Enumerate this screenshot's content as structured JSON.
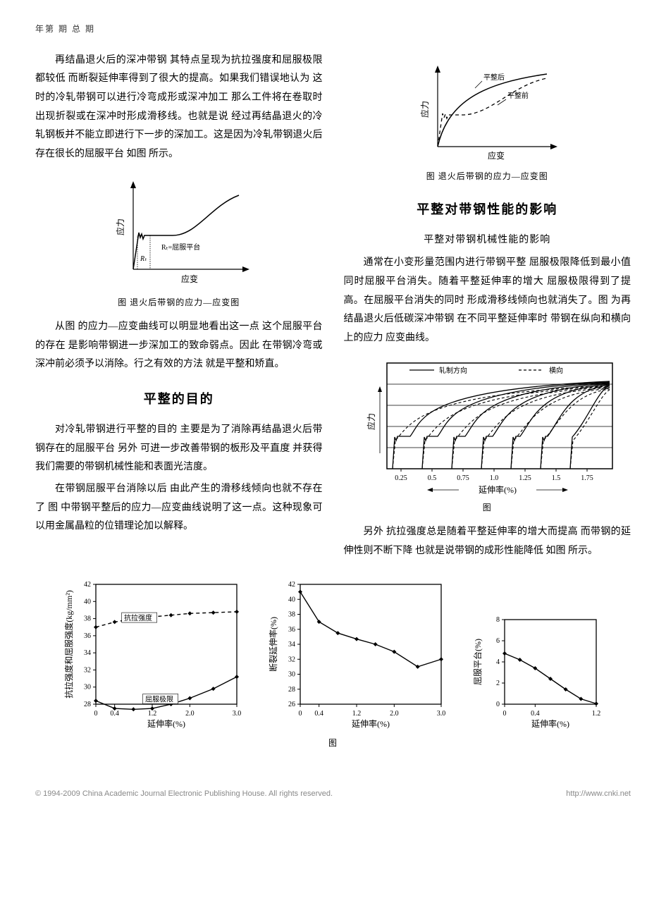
{
  "header": "年第  期  总    期",
  "left": {
    "p1": "再结晶退火后的深冲带钢  其特点呈现为抗拉强度和屈服极限都较低  而断裂延伸率得到了很大的提高。如果我们错误地认为  这时的冷轧带钢可以进行冷弯成形或深冲加工  那么工件将在卷取时出现折裂或在深冲时形成滑移线。也就是说  经过再结晶退火的冷轧钢板并不能立即进行下一步的深加工。这是因为冷轧带钢退火后存在很长的屈服平台  如图 所示。",
    "fig1_caption": "图    退火后带钢的应力—应变图",
    "fig1_ylabel": "应力",
    "fig1_xlabel": "应变",
    "fig1_rt": "Rₜ",
    "fig1_rt_label": "Rₜ=屈服平台",
    "p2": "从图 的应力—应变曲线可以明显地看出这一点  这个屈服平台的存在  是影响带钢进一步深加工的致命弱点。因此  在带钢冷弯或深冲前必须予以消除。行之有效的方法  就是平整和矫直。",
    "sec1": "平整的目的",
    "p3": "对冷轧带钢进行平整的目的  主要是为了消除再结晶退火后带钢存在的屈服平台  另外  可进一步改善带钢的板形及平直度  并获得我们需要的带钢机械性能和表面光洁度。",
    "p4": "在带钢屈服平台消除以后  由此产生的滑移线倾向也就不存在了  图 中带钢平整后的应力—应变曲线说明了这一点。这种现象可以用金属晶粒的位错理论加以解释。"
  },
  "right": {
    "fig2_ylabel": "应力",
    "fig2_xlabel": "应变",
    "fig2_after": "平整后",
    "fig2_before": "平整前",
    "fig2_caption": "图    退火后带钢的应力—应变图",
    "sec2": "平整对带钢性能的影响",
    "sub2": "平整对带钢机械性能的影响",
    "p5": "通常在小变形量范围内进行带钢平整  屈服极限降低到最小值  同时屈服平台消失。随着平整延伸率的增大  屈服极限得到了提高。在屈服平台消失的同时  形成滑移线倾向也就消失了。图 为再结晶退火后低碳深冲带钢  在不同平整延伸率时  带钢在纵向和横向上的应力 应变曲线。",
    "fig3_legend_roll": "轧制方向",
    "fig3_legend_trans": "横向",
    "fig3_ylabel": "应力",
    "fig3_xlabel": "延伸率(%)",
    "fig3_ticks": [
      "0.25",
      "0.5",
      "0.75",
      "1.0",
      "1.25",
      "1.5",
      "1.75"
    ],
    "fig3_caption": "图",
    "p6": "另外  抗拉强度总是随着平整延伸率的增大而提高  而带钢的延伸性则不断下降  也就是说带钢的成形性能降低  如图 所示。"
  },
  "bottom": {
    "caption": "图",
    "chartA": {
      "ylabel": "抗拉强度和屈服强度(kg/mm²)",
      "xlabel": "延伸率(%)",
      "yticks": [
        "28",
        "30",
        "32",
        "34",
        "36",
        "38",
        "40",
        "42"
      ],
      "xticks": [
        "0",
        "0.4",
        "1.2",
        "2.0",
        "3.0"
      ],
      "label_tensile": "抗拉强度",
      "label_yield": "屈服极限",
      "tensile": {
        "x": [
          0,
          0.4,
          0.8,
          1.2,
          1.6,
          2.0,
          2.5,
          3.0
        ],
        "y": [
          37,
          37.6,
          38,
          38.2,
          38.4,
          38.6,
          38.7,
          38.8
        ]
      },
      "yield": {
        "x": [
          0,
          0.4,
          0.8,
          1.2,
          1.6,
          2.0,
          2.5,
          3.0
        ],
        "y": [
          28.4,
          27.5,
          27.4,
          27.5,
          28,
          28.7,
          29.8,
          31.2
        ]
      }
    },
    "chartB": {
      "ylabel": "断裂延伸率(%)",
      "xlabel": "延伸率(%)",
      "yticks": [
        "26",
        "28",
        "30",
        "32",
        "34",
        "36",
        "38",
        "40",
        "42"
      ],
      "xticks": [
        "0",
        "0.4",
        "1.2",
        "2.0",
        "3.0"
      ],
      "series": {
        "x": [
          0,
          0.4,
          0.8,
          1.2,
          1.6,
          2.0,
          2.5,
          3.0
        ],
        "y": [
          41,
          37,
          35.5,
          34.7,
          34,
          33,
          31,
          32
        ]
      }
    },
    "chartC": {
      "ylabel": "屈服平台(%)",
      "xlabel": "延伸率(%)",
      "yticks": [
        "0",
        "2",
        "4",
        "6",
        "8"
      ],
      "xticks": [
        "0",
        "0.4",
        "1.2"
      ],
      "series": {
        "x": [
          0,
          0.2,
          0.4,
          0.6,
          0.8,
          1.0,
          1.2
        ],
        "y": [
          4.8,
          4.2,
          3.4,
          2.4,
          1.4,
          0.5,
          0.05
        ]
      }
    }
  },
  "footer_left": "© 1994-2009 China Academic Journal Electronic Publishing House. All rights reserved.",
  "footer_right": "http://www.cnki.net"
}
